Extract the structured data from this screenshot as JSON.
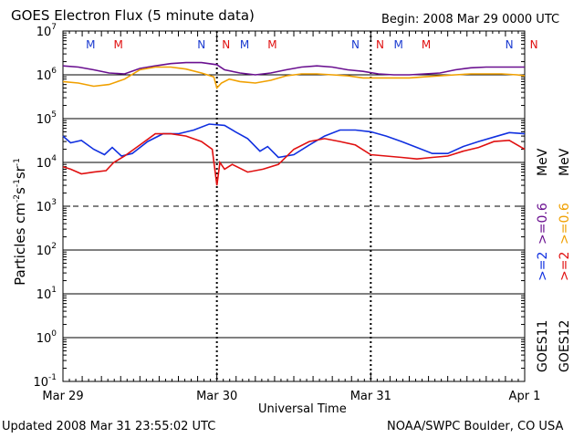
{
  "header": {
    "title": "GOES Electron Flux (5 minute data)",
    "begin": "Begin: 2008 Mar 29 0000 UTC"
  },
  "footer": {
    "updated": "Updated 2008 Mar 31 23:55:02 UTC",
    "credit": "NOAA/SWPC Boulder, CO USA"
  },
  "side_legend": {
    "goes11": "GOES11",
    "goes12": "GOES12",
    "goes11_label_ge2": ">=2",
    "goes11_label_ge06": ">=0.6",
    "goes12_label_ge2": ">=2",
    "goes12_label_ge06": ">=0.6",
    "unit": "MeV"
  },
  "colors": {
    "goes11_ge2": "#1030e0",
    "goes11_ge06": "#6a1090",
    "goes12_ge2": "#e01010",
    "goes12_ge06": "#f0a000",
    "marker_M": "#1a3ad0",
    "marker_N": "#1a3ad0",
    "marker_M2": "#e01010",
    "marker_N2": "#e01010"
  },
  "chart_data": {
    "type": "line",
    "title": "GOES Electron Flux (5 minute data)",
    "xlabel": "Universal Time",
    "ylabel": "Particles cm⁻²s⁻¹sr⁻¹",
    "ylabel_parts": {
      "base": "Particles cm",
      "e1": "-2",
      "m1": "s",
      "e2": "-1",
      "m2": "sr",
      "e3": "-1"
    },
    "x_range_days": [
      0,
      3
    ],
    "x_ticks": [
      {
        "day": 0,
        "label": "Mar 29"
      },
      {
        "day": 1,
        "label": "Mar 30"
      },
      {
        "day": 2,
        "label": "Mar 31"
      },
      {
        "day": 3,
        "label": "Apr 1"
      }
    ],
    "y_scale": "log",
    "y_range_exp": [
      -1,
      7
    ],
    "y_ticks": [
      {
        "exp": 7,
        "label_base": "10",
        "label_exp": "7"
      },
      {
        "exp": 6,
        "label_base": "10",
        "label_exp": "6"
      },
      {
        "exp": 5,
        "label_base": "10",
        "label_exp": "5"
      },
      {
        "exp": 4,
        "label_base": "10",
        "label_exp": "4"
      },
      {
        "exp": 3,
        "label_base": "10",
        "label_exp": "3"
      },
      {
        "exp": 2,
        "label_base": "10",
        "label_exp": "2"
      },
      {
        "exp": 1,
        "label_base": "10",
        "label_exp": "1"
      },
      {
        "exp": 0,
        "label_base": "10",
        "label_exp": "0"
      },
      {
        "exp": -1,
        "label_base": "10",
        "label_exp": "-1"
      }
    ],
    "markers": [
      {
        "day": 0.18,
        "text": "M",
        "color": "#1a3ad0"
      },
      {
        "day": 0.36,
        "text": "M",
        "color": "#e01010"
      },
      {
        "day": 0.9,
        "text": "N",
        "color": "#1a3ad0"
      },
      {
        "day": 1.06,
        "text": "N",
        "color": "#e01010"
      },
      {
        "day": 1.18,
        "text": "M",
        "color": "#1a3ad0"
      },
      {
        "day": 1.36,
        "text": "M",
        "color": "#e01010"
      },
      {
        "day": 1.9,
        "text": "N",
        "color": "#1a3ad0"
      },
      {
        "day": 2.06,
        "text": "N",
        "color": "#e01010"
      },
      {
        "day": 2.18,
        "text": "M",
        "color": "#1a3ad0"
      },
      {
        "day": 2.36,
        "text": "M",
        "color": "#e01010"
      },
      {
        "day": 2.9,
        "text": "N",
        "color": "#1a3ad0"
      },
      {
        "day": 3.06,
        "text": "N",
        "color": "#e01010"
      }
    ],
    "series": [
      {
        "key": "goes11_ge06",
        "color": "#6a1090",
        "points": [
          [
            0.0,
            1600000.0
          ],
          [
            0.1,
            1500000.0
          ],
          [
            0.2,
            1300000.0
          ],
          [
            0.3,
            1100000.0
          ],
          [
            0.4,
            1050000.0
          ],
          [
            0.5,
            1400000.0
          ],
          [
            0.6,
            1600000.0
          ],
          [
            0.7,
            1800000.0
          ],
          [
            0.8,
            1900000.0
          ],
          [
            0.9,
            1900000.0
          ],
          [
            1.0,
            1700000.0
          ],
          [
            1.05,
            1300000.0
          ],
          [
            1.15,
            1100000.0
          ],
          [
            1.25,
            1000000.0
          ],
          [
            1.35,
            1100000.0
          ],
          [
            1.45,
            1300000.0
          ],
          [
            1.55,
            1500000.0
          ],
          [
            1.65,
            1600000.0
          ],
          [
            1.75,
            1500000.0
          ],
          [
            1.85,
            1300000.0
          ],
          [
            1.95,
            1200000.0
          ],
          [
            2.05,
            1050000.0
          ],
          [
            2.15,
            1000000.0
          ],
          [
            2.25,
            1000000.0
          ],
          [
            2.35,
            1050000.0
          ],
          [
            2.45,
            1100000.0
          ],
          [
            2.55,
            1300000.0
          ],
          [
            2.65,
            1450000.0
          ],
          [
            2.75,
            1500000.0
          ],
          [
            2.85,
            1500000.0
          ],
          [
            2.95,
            1500000.0
          ],
          [
            3.0,
            1500000.0
          ]
        ]
      },
      {
        "key": "goes12_ge06",
        "color": "#f0a000",
        "points": [
          [
            0.0,
            700000.0
          ],
          [
            0.1,
            650000.0
          ],
          [
            0.2,
            550000.0
          ],
          [
            0.3,
            600000.0
          ],
          [
            0.4,
            800000.0
          ],
          [
            0.5,
            1300000.0
          ],
          [
            0.6,
            1500000.0
          ],
          [
            0.7,
            1500000.0
          ],
          [
            0.8,
            1350000.0
          ],
          [
            0.9,
            1100000.0
          ],
          [
            0.98,
            900000.0
          ],
          [
            1.0,
            500000.0
          ],
          [
            1.03,
            650000.0
          ],
          [
            1.08,
            800000.0
          ],
          [
            1.15,
            700000.0
          ],
          [
            1.25,
            650000.0
          ],
          [
            1.35,
            750000.0
          ],
          [
            1.45,
            950000.0
          ],
          [
            1.55,
            1050000.0
          ],
          [
            1.65,
            1050000.0
          ],
          [
            1.75,
            1000000.0
          ],
          [
            1.85,
            950000.0
          ],
          [
            1.95,
            850000.0
          ],
          [
            2.05,
            850000.0
          ],
          [
            2.15,
            850000.0
          ],
          [
            2.25,
            850000.0
          ],
          [
            2.35,
            900000.0
          ],
          [
            2.45,
            950000.0
          ],
          [
            2.55,
            1000000.0
          ],
          [
            2.65,
            1050000.0
          ],
          [
            2.75,
            1050000.0
          ],
          [
            2.85,
            1050000.0
          ],
          [
            2.95,
            1000000.0
          ],
          [
            3.0,
            950000.0
          ]
        ]
      },
      {
        "key": "goes11_ge2",
        "color": "#1030e0",
        "points": [
          [
            0.0,
            40000.0
          ],
          [
            0.05,
            28000.0
          ],
          [
            0.12,
            32000.0
          ],
          [
            0.2,
            20000.0
          ],
          [
            0.27,
            15000.0
          ],
          [
            0.32,
            22000.0
          ],
          [
            0.38,
            14000.0
          ],
          [
            0.45,
            16000.0
          ],
          [
            0.55,
            30000.0
          ],
          [
            0.65,
            45000.0
          ],
          [
            0.75,
            45000.0
          ],
          [
            0.85,
            55000.0
          ],
          [
            0.95,
            75000.0
          ],
          [
            1.05,
            70000.0
          ],
          [
            1.12,
            50000.0
          ],
          [
            1.2,
            35000.0
          ],
          [
            1.28,
            18000.0
          ],
          [
            1.33,
            23000.0
          ],
          [
            1.4,
            13000.0
          ],
          [
            1.5,
            15000.0
          ],
          [
            1.6,
            25000.0
          ],
          [
            1.7,
            40000.0
          ],
          [
            1.8,
            55000.0
          ],
          [
            1.9,
            55000.0
          ],
          [
            2.0,
            50000.0
          ],
          [
            2.1,
            40000.0
          ],
          [
            2.2,
            30000.0
          ],
          [
            2.3,
            22000.0
          ],
          [
            2.4,
            16000.0
          ],
          [
            2.5,
            16000.0
          ],
          [
            2.6,
            23000.0
          ],
          [
            2.7,
            30000.0
          ],
          [
            2.8,
            38000.0
          ],
          [
            2.9,
            48000.0
          ],
          [
            3.0,
            45000.0
          ]
        ]
      },
      {
        "key": "goes12_ge2",
        "color": "#e01010",
        "points": [
          [
            0.0,
            8000.0
          ],
          [
            0.05,
            7000.0
          ],
          [
            0.12,
            5500.0
          ],
          [
            0.2,
            6000.0
          ],
          [
            0.28,
            6500.0
          ],
          [
            0.33,
            10000.0
          ],
          [
            0.4,
            14000.0
          ],
          [
            0.5,
            25000.0
          ],
          [
            0.6,
            45000.0
          ],
          [
            0.7,
            45000.0
          ],
          [
            0.8,
            40000.0
          ],
          [
            0.9,
            30000.0
          ],
          [
            0.97,
            20000.0
          ],
          [
            1.0,
            3000.0
          ],
          [
            1.02,
            10000.0
          ],
          [
            1.05,
            7000.0
          ],
          [
            1.1,
            9000.0
          ],
          [
            1.2,
            6000.0
          ],
          [
            1.3,
            7000.0
          ],
          [
            1.4,
            9000.0
          ],
          [
            1.5,
            20000.0
          ],
          [
            1.6,
            30000.0
          ],
          [
            1.7,
            35000.0
          ],
          [
            1.8,
            30000.0
          ],
          [
            1.9,
            25000.0
          ],
          [
            2.0,
            15000.0
          ],
          [
            2.1,
            14000.0
          ],
          [
            2.2,
            13000.0
          ],
          [
            2.3,
            12000.0
          ],
          [
            2.4,
            13000.0
          ],
          [
            2.5,
            14000.0
          ],
          [
            2.6,
            18000.0
          ],
          [
            2.7,
            22000.0
          ],
          [
            2.8,
            30000.0
          ],
          [
            2.9,
            32000.0
          ],
          [
            3.0,
            20000.0
          ]
        ]
      }
    ]
  }
}
